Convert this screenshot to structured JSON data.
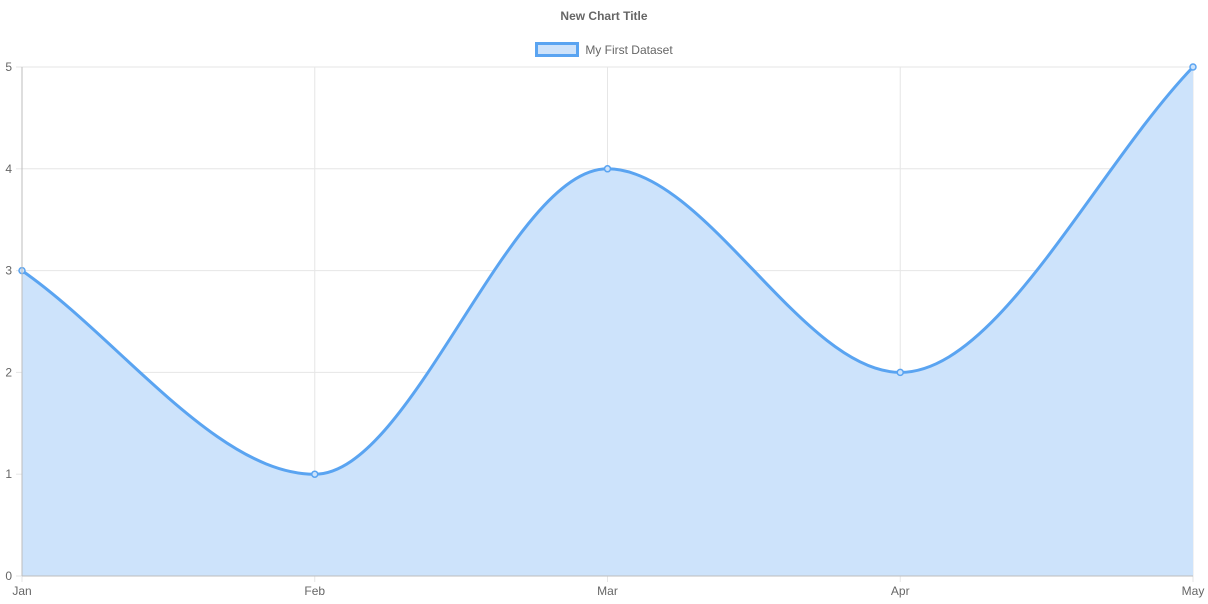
{
  "chart_data": {
    "type": "area",
    "title": "New Chart Title",
    "categories": [
      "Jan",
      "Feb",
      "Mar",
      "Apr",
      "May"
    ],
    "series": [
      {
        "name": "My First Dataset",
        "values": [
          3,
          1,
          4,
          2,
          5
        ]
      }
    ],
    "y_ticks": [
      "0",
      "1",
      "2",
      "3",
      "4",
      "5"
    ],
    "ylim": [
      0,
      5
    ],
    "grid": true,
    "legend_position": "top-center",
    "colors": {
      "line": "#5aa4f1",
      "fill": "#cde3fb",
      "grid": "#e6e6e6",
      "axis": "#bdbdbd"
    }
  }
}
